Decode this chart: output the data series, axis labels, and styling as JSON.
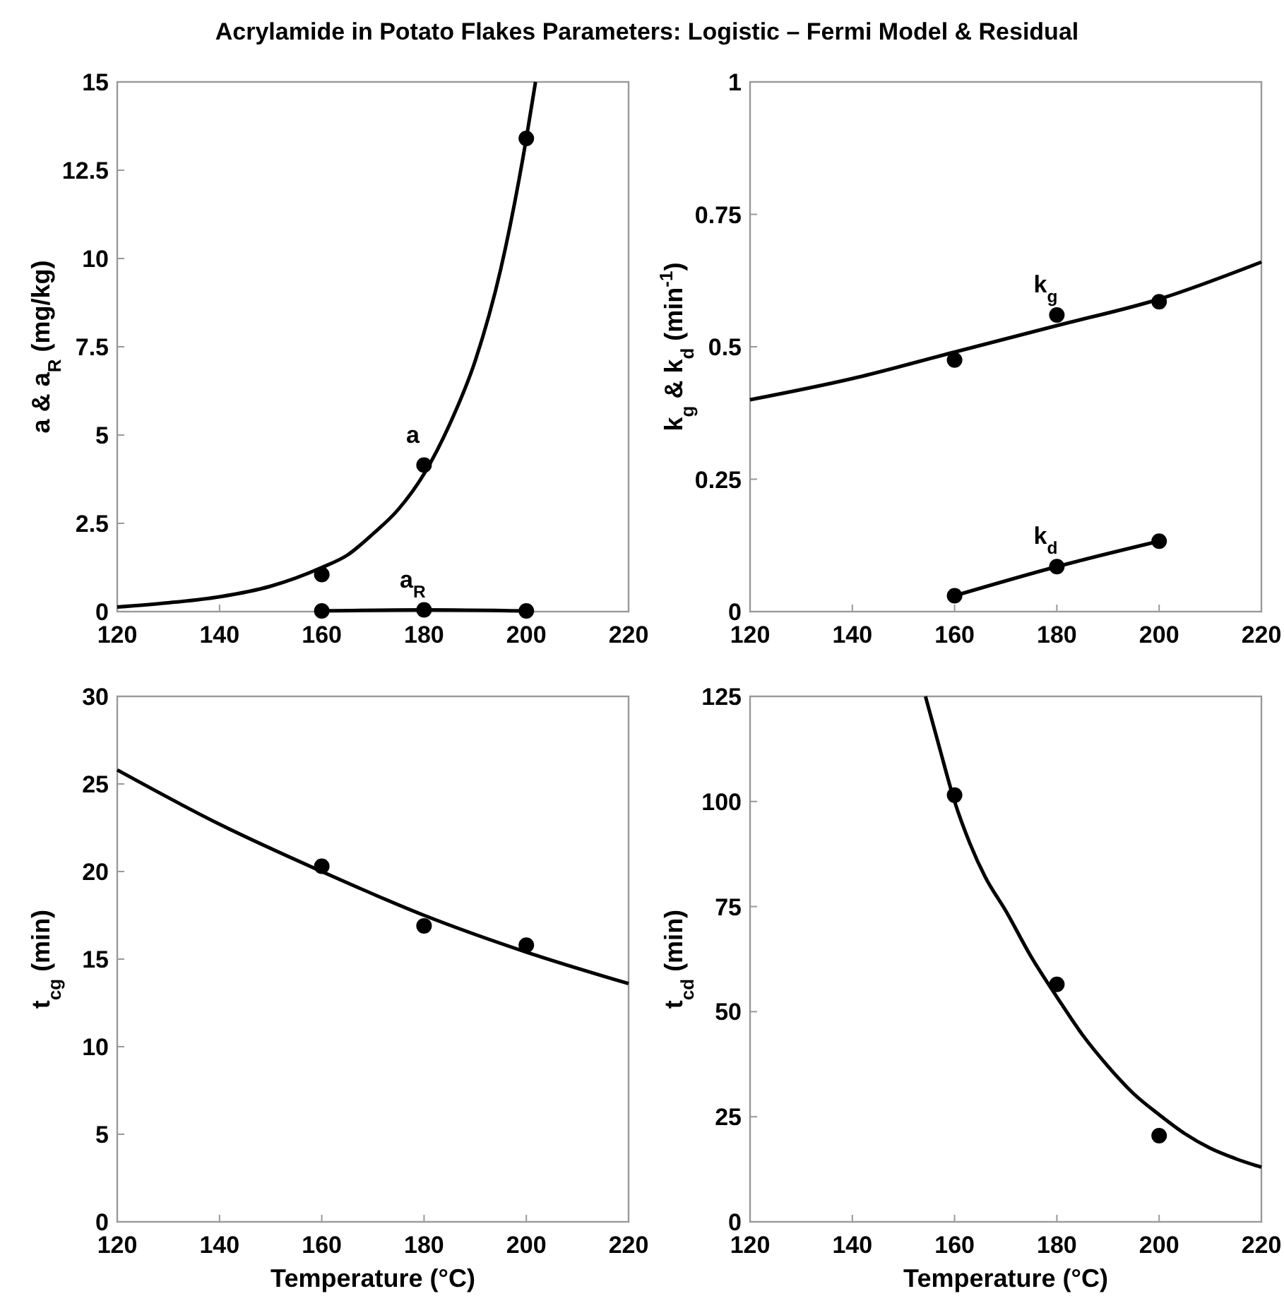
{
  "chart_data": [
    {
      "type": "scatter",
      "title": "Acrylamide in Potato Flakes Parameters: Logistic – Fermi Model & Residual",
      "ylabel": "a & a$_{R}$ (mg/kg)",
      "xlim": [
        120,
        220
      ],
      "xticks": [
        120,
        140,
        160,
        180,
        200,
        220
      ],
      "ylim": [
        0,
        15
      ],
      "yticks": [
        0,
        2.5,
        5,
        7.5,
        10,
        12.5,
        15
      ],
      "grid": false,
      "series": [
        {
          "type": "line",
          "color": "#000000",
          "marker": "none",
          "x": [
            120,
            130,
            140,
            150,
            160,
            165,
            170,
            175,
            180,
            185,
            190,
            195,
            200,
            201.8
          ],
          "values": [
            0.13,
            0.25,
            0.42,
            0.72,
            1.25,
            1.6,
            2.2,
            2.9,
            3.9,
            5.3,
            7.1,
            9.7,
            13.4,
            15
          ]
        },
        {
          "name": "a",
          "color": "#000000",
          "marker": "circle",
          "x": [
            160,
            180,
            200
          ],
          "values": [
            1.05,
            4.15,
            13.4
          ]
        },
        {
          "type": "line",
          "name": "a$_{R}$",
          "color": "#000000",
          "marker": "circle",
          "x": [
            160,
            180,
            200
          ],
          "values": [
            0.02,
            0.05,
            0.02
          ]
        }
      ]
    },
    {
      "type": "scatter",
      "ylabel": "k$_{g}$ & k$_{d}$ (min$^{-1}$)",
      "xlim": [
        120,
        220
      ],
      "xticks": [
        120,
        140,
        160,
        180,
        200,
        220
      ],
      "ylim": [
        0,
        1
      ],
      "yticks": [
        0,
        0.25,
        0.5,
        0.75,
        1
      ],
      "grid": false,
      "series": [
        {
          "type": "line",
          "color": "#000000",
          "marker": "none",
          "x": [
            120,
            140,
            160,
            180,
            200,
            220
          ],
          "values": [
            0.4,
            0.44,
            0.49,
            0.54,
            0.59,
            0.66
          ]
        },
        {
          "name": "k$_{g}$",
          "color": "#000000",
          "marker": "circle",
          "x": [
            160,
            180,
            200
          ],
          "values": [
            0.475,
            0.56,
            0.585
          ]
        },
        {
          "type": "line",
          "name": "k$_{d}$",
          "color": "#000000",
          "marker": "circle",
          "x": [
            160,
            180,
            200
          ],
          "values": [
            0.03,
            0.085,
            0.133
          ]
        }
      ]
    },
    {
      "type": "scatter",
      "xlabel": "Temperature (°C)",
      "ylabel": "t$_{cg}$ (min)",
      "xlim": [
        120,
        220
      ],
      "xticks": [
        120,
        140,
        160,
        180,
        200,
        220
      ],
      "ylim": [
        0,
        30
      ],
      "yticks": [
        0,
        5,
        10,
        15,
        20,
        25,
        30
      ],
      "grid": false,
      "series": [
        {
          "type": "line",
          "color": "#000000",
          "marker": "none",
          "x": [
            120,
            140,
            160,
            180,
            200,
            220
          ],
          "values": [
            25.8,
            22.7,
            20.0,
            17.5,
            15.4,
            13.6
          ]
        },
        {
          "color": "#000000",
          "marker": "circle",
          "x": [
            160,
            180,
            200
          ],
          "values": [
            20.3,
            16.9,
            15.8
          ]
        }
      ]
    },
    {
      "type": "scatter",
      "xlabel": "Temperature (°C)",
      "ylabel": "t$_{cd}$ (min)",
      "xlim": [
        120,
        220
      ],
      "xticks": [
        120,
        140,
        160,
        180,
        200,
        220
      ],
      "ylim": [
        0,
        125
      ],
      "yticks": [
        0,
        25,
        50,
        75,
        100,
        125
      ],
      "grid": false,
      "series": [
        {
          "type": "line",
          "color": "#000000",
          "marker": "none",
          "x": [
            154.3,
            157,
            160,
            163,
            166,
            170,
            175,
            180,
            185,
            190,
            195,
            200,
            205,
            210,
            215,
            220
          ],
          "values": [
            125,
            113,
            100,
            90,
            82,
            74,
            63,
            53.5,
            44.5,
            37,
            30.5,
            25.5,
            21,
            17.5,
            15,
            13
          ]
        },
        {
          "color": "#000000",
          "marker": "circle",
          "x": [
            160,
            180,
            200
          ],
          "values": [
            101.5,
            56.5,
            20.5
          ]
        }
      ]
    }
  ]
}
